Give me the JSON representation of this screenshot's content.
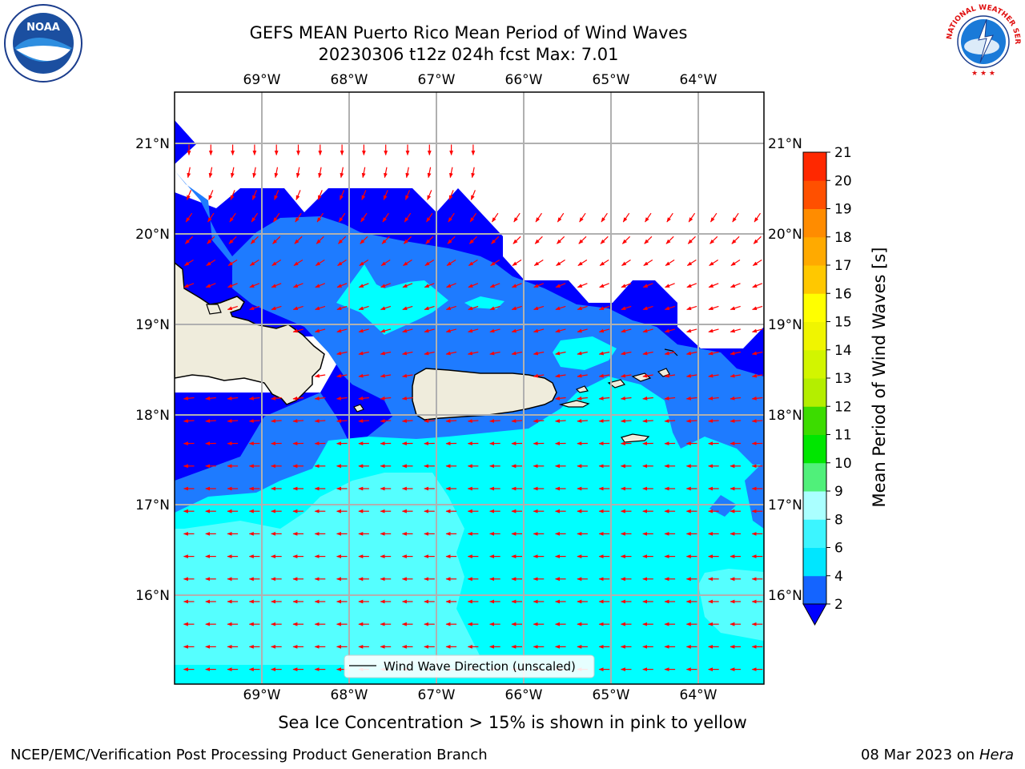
{
  "title": {
    "line1": "GEFS MEAN Puerto Rico Mean Period of Wind Waves",
    "line2": "20230306 t12z 024h fcst   Max: 7.01"
  },
  "map": {
    "lon_labels": [
      "69°W",
      "68°W",
      "67°W",
      "66°W",
      "65°W",
      "64°W"
    ],
    "lat_labels": [
      "21°N",
      "20°N",
      "19°N",
      "18°N",
      "17°N",
      "16°N"
    ],
    "legend_label": "Wind Wave Direction (unscaled)",
    "colors": {
      "land": "#efecdc",
      "coast": "#000000",
      "grid": "#b0b0b0",
      "arrow": "#ff0000",
      "ocean_deep": "#0000ff",
      "ocean_mid": "#1e7bff",
      "ocean_cyan": "#00ffff",
      "ocean_light": "#55ffff"
    }
  },
  "colorbar": {
    "label": "Mean Period of Wind Waves [s]",
    "ticks": [
      "2",
      "4",
      "6",
      "8",
      "9",
      "10",
      "11",
      "12",
      "13",
      "14",
      "15",
      "16",
      "17",
      "18",
      "19",
      "20",
      "21"
    ],
    "colors": [
      "#1464ff",
      "#00e6ff",
      "#3cf5ff",
      "#aaffff",
      "#50f07a",
      "#00e600",
      "#3cdc00",
      "#b4ee00",
      "#d2f500",
      "#f0f500",
      "#ffff00",
      "#ffc800",
      "#ffaa00",
      "#ff8c00",
      "#ff5000",
      "#ff2800",
      "#ff0000"
    ]
  },
  "note": "Sea Ice Concentration > 15% is shown in pink to yellow",
  "footer": {
    "left": "NCEP/EMC/Verification Post Processing Product Generation Branch",
    "date": "08 Mar 2023 on",
    "host": "Hera"
  },
  "logos": {
    "noaa_text": "NOAA",
    "nws_text": "NATIONAL WEATHER SERVICE"
  }
}
